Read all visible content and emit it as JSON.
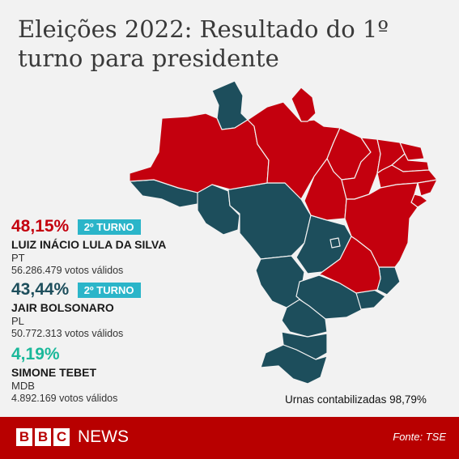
{
  "title": "Eleições 2022: Resultado do 1º turno para presidente",
  "colors": {
    "lula": "#c4000e",
    "bolsonaro": "#1d4e5c",
    "tebet": "#1ab89a",
    "badge": "#2bb5c9",
    "footer": "#b80000"
  },
  "candidates": [
    {
      "pct": "48,15%",
      "badge": "2º TURNO",
      "name": "LUIZ INÁCIO LULA DA SILVA",
      "party": "PT",
      "votes": "56.286.479  votos válidos"
    },
    {
      "pct": "43,44%",
      "badge": "2º TURNO",
      "name": "JAIR BOLSONARO",
      "party": "PL",
      "votes": "50.772.313 votos válidos"
    },
    {
      "pct": "4,19%",
      "name": "SIMONE TEBET",
      "party": "MDB",
      "votes": "4.892.169 votos válidos"
    }
  ],
  "urnas": "Urnas contabilizadas 98,79%",
  "states": {
    "lula": [
      "AM",
      "PA",
      "AP",
      "MA",
      "PI",
      "CE",
      "RN",
      "PB",
      "PE",
      "AL",
      "SE",
      "BA",
      "TO",
      "MG"
    ],
    "bolsonaro": [
      "RR",
      "AC",
      "RO",
      "MT",
      "MS",
      "GO",
      "DF",
      "SP",
      "RJ",
      "ES",
      "PR",
      "SC",
      "RS"
    ]
  },
  "footer": {
    "bbc": [
      "B",
      "B",
      "C"
    ],
    "news": "NEWS",
    "fonte": "Fonte: TSE"
  }
}
